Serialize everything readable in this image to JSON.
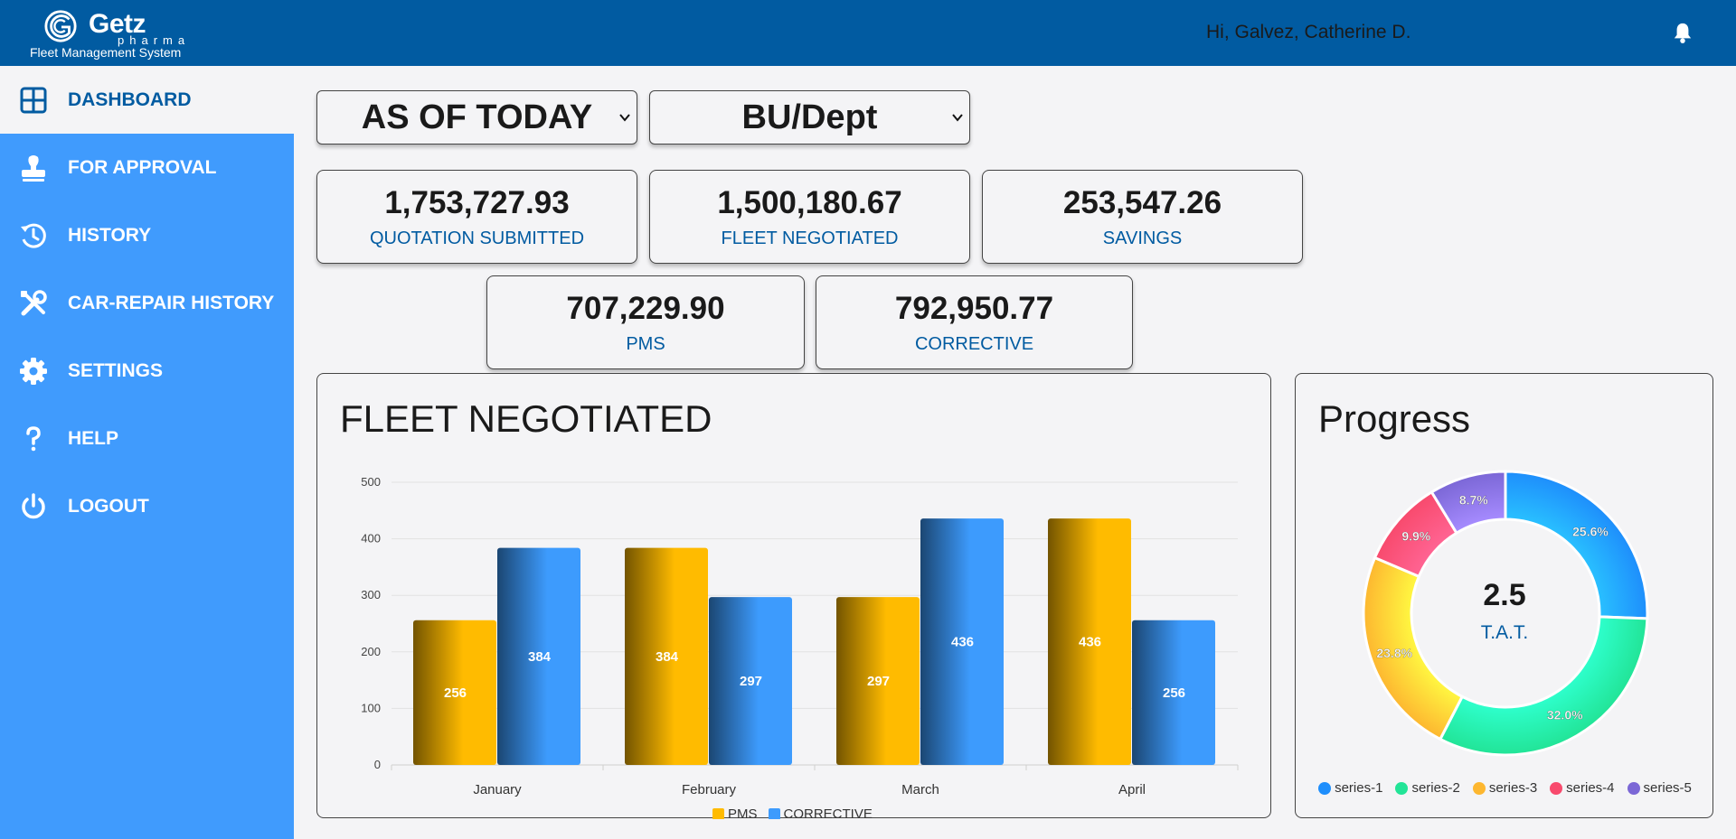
{
  "header": {
    "logo_name": "Getz",
    "logo_sub": "pharma",
    "logo_tag": "Fleet Management System",
    "greeting": "Hi, Galvez, Catherine D.",
    "notification_icon": "bell-icon"
  },
  "sidebar": {
    "items": [
      {
        "label": "DASHBOARD",
        "icon": "dashboard-grid-icon",
        "active": true
      },
      {
        "label": "FOR APPROVAL",
        "icon": "approval-stamp-icon",
        "active": false
      },
      {
        "label": "HISTORY",
        "icon": "history-icon",
        "active": false
      },
      {
        "label": "CAR-REPAIR HISTORY",
        "icon": "tools-icon",
        "active": false
      },
      {
        "label": "SETTINGS",
        "icon": "gear-icon",
        "active": false
      },
      {
        "label": "HELP",
        "icon": "question-icon",
        "active": false
      },
      {
        "label": "LOGOUT",
        "icon": "power-icon",
        "active": false
      }
    ]
  },
  "filters": {
    "period": "AS OF TODAY",
    "group": "BU/Dept"
  },
  "stats": {
    "quotation": {
      "value": "1,753,727.93",
      "label": "QUOTATION SUBMITTED"
    },
    "negotiated": {
      "value": "1,500,180.67",
      "label": "FLEET NEGOTIATED"
    },
    "savings": {
      "value": "253,547.26",
      "label": "SAVINGS"
    },
    "pms": {
      "value": "707,229.90",
      "label": "PMS"
    },
    "corrective": {
      "value": "792,950.77",
      "label": "CORRECTIVE"
    }
  },
  "fleet_panel": {
    "title": "FLEET NEGOTIATED"
  },
  "progress_panel": {
    "title": "Progress",
    "center_value": "2.5",
    "center_label": "T.A.T."
  },
  "colors": {
    "header": "#015ba1",
    "sidebar": "#409bfd",
    "pms": "#ffbb00",
    "corrective": "#3d9bfd"
  },
  "chart_data": [
    {
      "type": "bar",
      "title": "FLEET NEGOTIATED",
      "categories": [
        "January",
        "February",
        "March",
        "April"
      ],
      "series": [
        {
          "name": "PMS",
          "values": [
            256,
            384,
            297,
            436
          ],
          "color": "#ffbb00"
        },
        {
          "name": "CORRECTIVE",
          "values": [
            384,
            297,
            436,
            256
          ],
          "color": "#3d9bfd"
        }
      ],
      "ylim": [
        0,
        500
      ],
      "yticks": [
        0,
        100,
        200,
        300,
        400,
        500
      ],
      "grid": true,
      "legend": "bottom"
    },
    {
      "type": "pie",
      "title": "Progress",
      "donut": true,
      "labels": [
        "series-1",
        "series-2",
        "series-3",
        "series-4",
        "series-5"
      ],
      "values": [
        25.6,
        32.0,
        23.8,
        9.9,
        8.7
      ],
      "display_labels": [
        "25.6%",
        "32.0%",
        "23.8%",
        "9.9%",
        "8.7%"
      ],
      "colors": [
        "#1e8efc",
        "#22e497",
        "#fdb730",
        "#f84a6d",
        "#7b67d6"
      ],
      "legend": "bottom"
    }
  ]
}
